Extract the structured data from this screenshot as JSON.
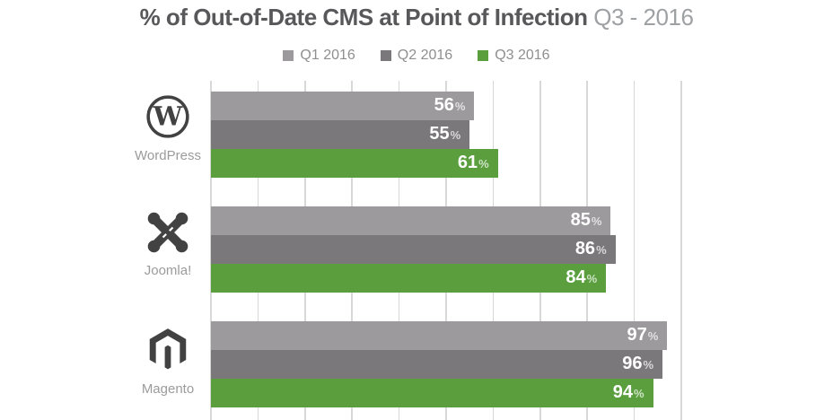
{
  "title": {
    "main": "% of Out-of-Date CMS at Point of Infection",
    "period": " Q3 - 2016"
  },
  "chart_data": {
    "type": "bar",
    "orientation": "horizontal",
    "title": "% of Out-of-Date CMS at Point of Infection Q3 - 2016",
    "categories": [
      "WordPress",
      "Joomla!",
      "Magento"
    ],
    "series": [
      {
        "name": "Q1 2016",
        "color": "#9d9a9d",
        "values": [
          56,
          85,
          97
        ]
      },
      {
        "name": "Q2 2016",
        "color": "#7b787b",
        "values": [
          55,
          86,
          96
        ]
      },
      {
        "name": "Q3 2016",
        "color": "#5a9e3e",
        "values": [
          61,
          84,
          94
        ]
      }
    ],
    "value_suffix": "%",
    "xlim": [
      0,
      100
    ],
    "gridline_step_percent": 10,
    "grid": true,
    "legend_position": "top",
    "value_labels": "inside-end"
  },
  "icons": [
    {
      "category": "WordPress",
      "name": "wordpress-icon"
    },
    {
      "category": "Joomla!",
      "name": "joomla-icon"
    },
    {
      "category": "Magento",
      "name": "magento-icon"
    }
  ],
  "colors": {
    "title_main": "#58585a",
    "title_period": "#9ea1a3",
    "legend_text": "#8f8f8f",
    "category_label": "#9b9b9b",
    "gridline": "#d8d8d8",
    "icon": "#424242",
    "value_text": "#ffffff"
  }
}
